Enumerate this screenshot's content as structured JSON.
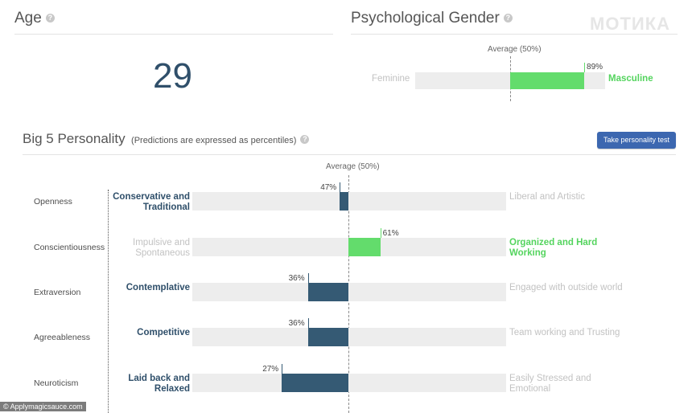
{
  "age": {
    "title": "Age",
    "value": "29"
  },
  "gender": {
    "title": "Psychological Gender",
    "average_label": "Average (50%)",
    "left_label": "Feminine",
    "right_label": "Masculine",
    "percent_label": "89%",
    "percent": 89
  },
  "big5": {
    "title": "Big 5 Personality",
    "subtitle": "(Predictions are expressed as percentiles)",
    "button_label": "Take personality test",
    "average_label": "Average (50%)",
    "traits": [
      {
        "name": "Openness",
        "left": "Conservative and Traditional",
        "right": "Liberal and Artistic",
        "percent": 47,
        "percent_label": "47%"
      },
      {
        "name": "Conscientiousness",
        "left": "Impulsive and Spontaneous",
        "right": "Organized and Hard Working",
        "percent": 61,
        "percent_label": "61%"
      },
      {
        "name": "Extraversion",
        "left": "Contemplative",
        "right": "Engaged with outside world",
        "percent": 36,
        "percent_label": "36%"
      },
      {
        "name": "Agreeableness",
        "left": "Competitive",
        "right": "Team working and Trusting",
        "percent": 36,
        "percent_label": "36%"
      },
      {
        "name": "Neuroticism",
        "left": "Laid back and Relaxed",
        "right": "Easily Stressed and Emotional",
        "percent": 27,
        "percent_label": "27%"
      }
    ]
  },
  "watermark": "МОТИКА",
  "credit": "© Applymagicsauce.com",
  "colors": {
    "dark_bar": "#355a74",
    "green_bar": "#63dc6c",
    "track": "#ededed",
    "button": "#3c67b0"
  }
}
